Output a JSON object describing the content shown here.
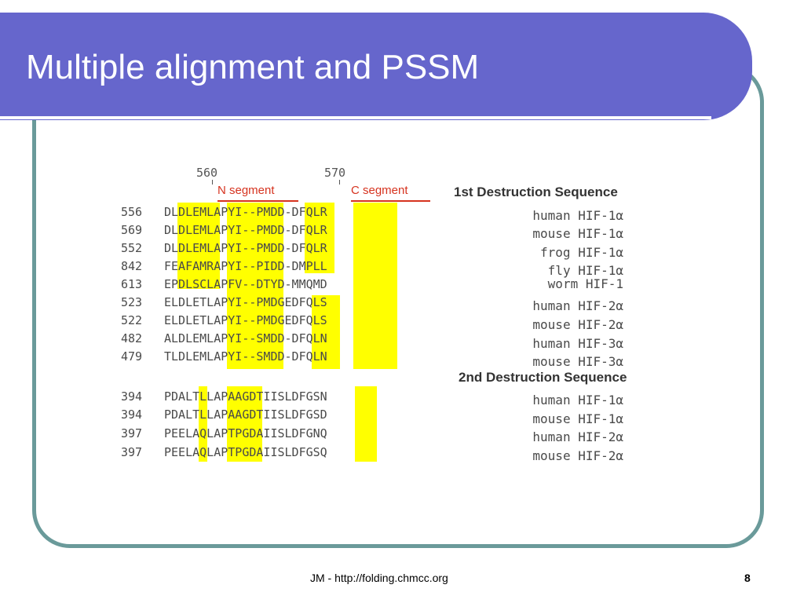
{
  "slide": {
    "title": "Multiple alignment and PSSM",
    "footer_text": "JM - http://folding.chmcc.org",
    "page_number": "8"
  },
  "figure": {
    "position_markers": [
      "560",
      "570"
    ],
    "segments": {
      "n_segment": "N segment",
      "c_segment": "C segment"
    },
    "section1_title": "1st Destruction Sequence",
    "section2_title": "2nd Destruction Sequence",
    "block1": [
      {
        "num": "556",
        "seq": "DLDLEMLAPYI--PMDD-DFQLR",
        "species": "human HIF-1α"
      },
      {
        "num": "569",
        "seq": "DLDLEMLAPYI--PMDD-DFQLR",
        "species": "mouse HIF-1α"
      },
      {
        "num": "552",
        "seq": "DLDLEMLAPYI--PMDD-DFQLR",
        "species": "frog HIF-1α"
      },
      {
        "num": "842",
        "seq": "FEAFAMRAPYI--PIDD-DMPLL",
        "species": "fly HIF-1α"
      },
      {
        "num": "613",
        "seq": "EPDLSCLAPFV--DTYD-MMQMD",
        "species": "worm HIF-1"
      },
      {
        "num": "523",
        "seq": "ELDLETLAPYI--PMDGEDFQLS",
        "species": "human HIF-2α"
      },
      {
        "num": "522",
        "seq": "ELDLETLAPYI--PMDGEDFQLS",
        "species": "mouse HIF-2α"
      },
      {
        "num": "482",
        "seq": "ALDLEMLAPYI--SMDD-DFQLN",
        "species": "human HIF-3α"
      },
      {
        "num": "479",
        "seq": "TLDLEMLAPYI--SMDD-DFQLN",
        "species": "mouse HIF-3α"
      }
    ],
    "block2": [
      {
        "num": "394",
        "seq": "PDALTLLAPAAGDTIISLDFGSN",
        "species": "human HIF-1α"
      },
      {
        "num": "394",
        "seq": "PDALTLLAPAAGDTIISLDFGSD",
        "species": "mouse HIF-1α"
      },
      {
        "num": "397",
        "seq": "PEELAQLAPTPGDAIISLDFGNQ",
        "species": "human HIF-2α"
      },
      {
        "num": "397",
        "seq": "PEELAQLAPTPGDAIISLDFGSQ",
        "species": "mouse HIF-2α"
      }
    ]
  },
  "colors": {
    "title_bar": "#6666cc",
    "frame_border": "#6a9a9a",
    "highlight": "#ffff00",
    "segment_red": "#d6331f"
  }
}
